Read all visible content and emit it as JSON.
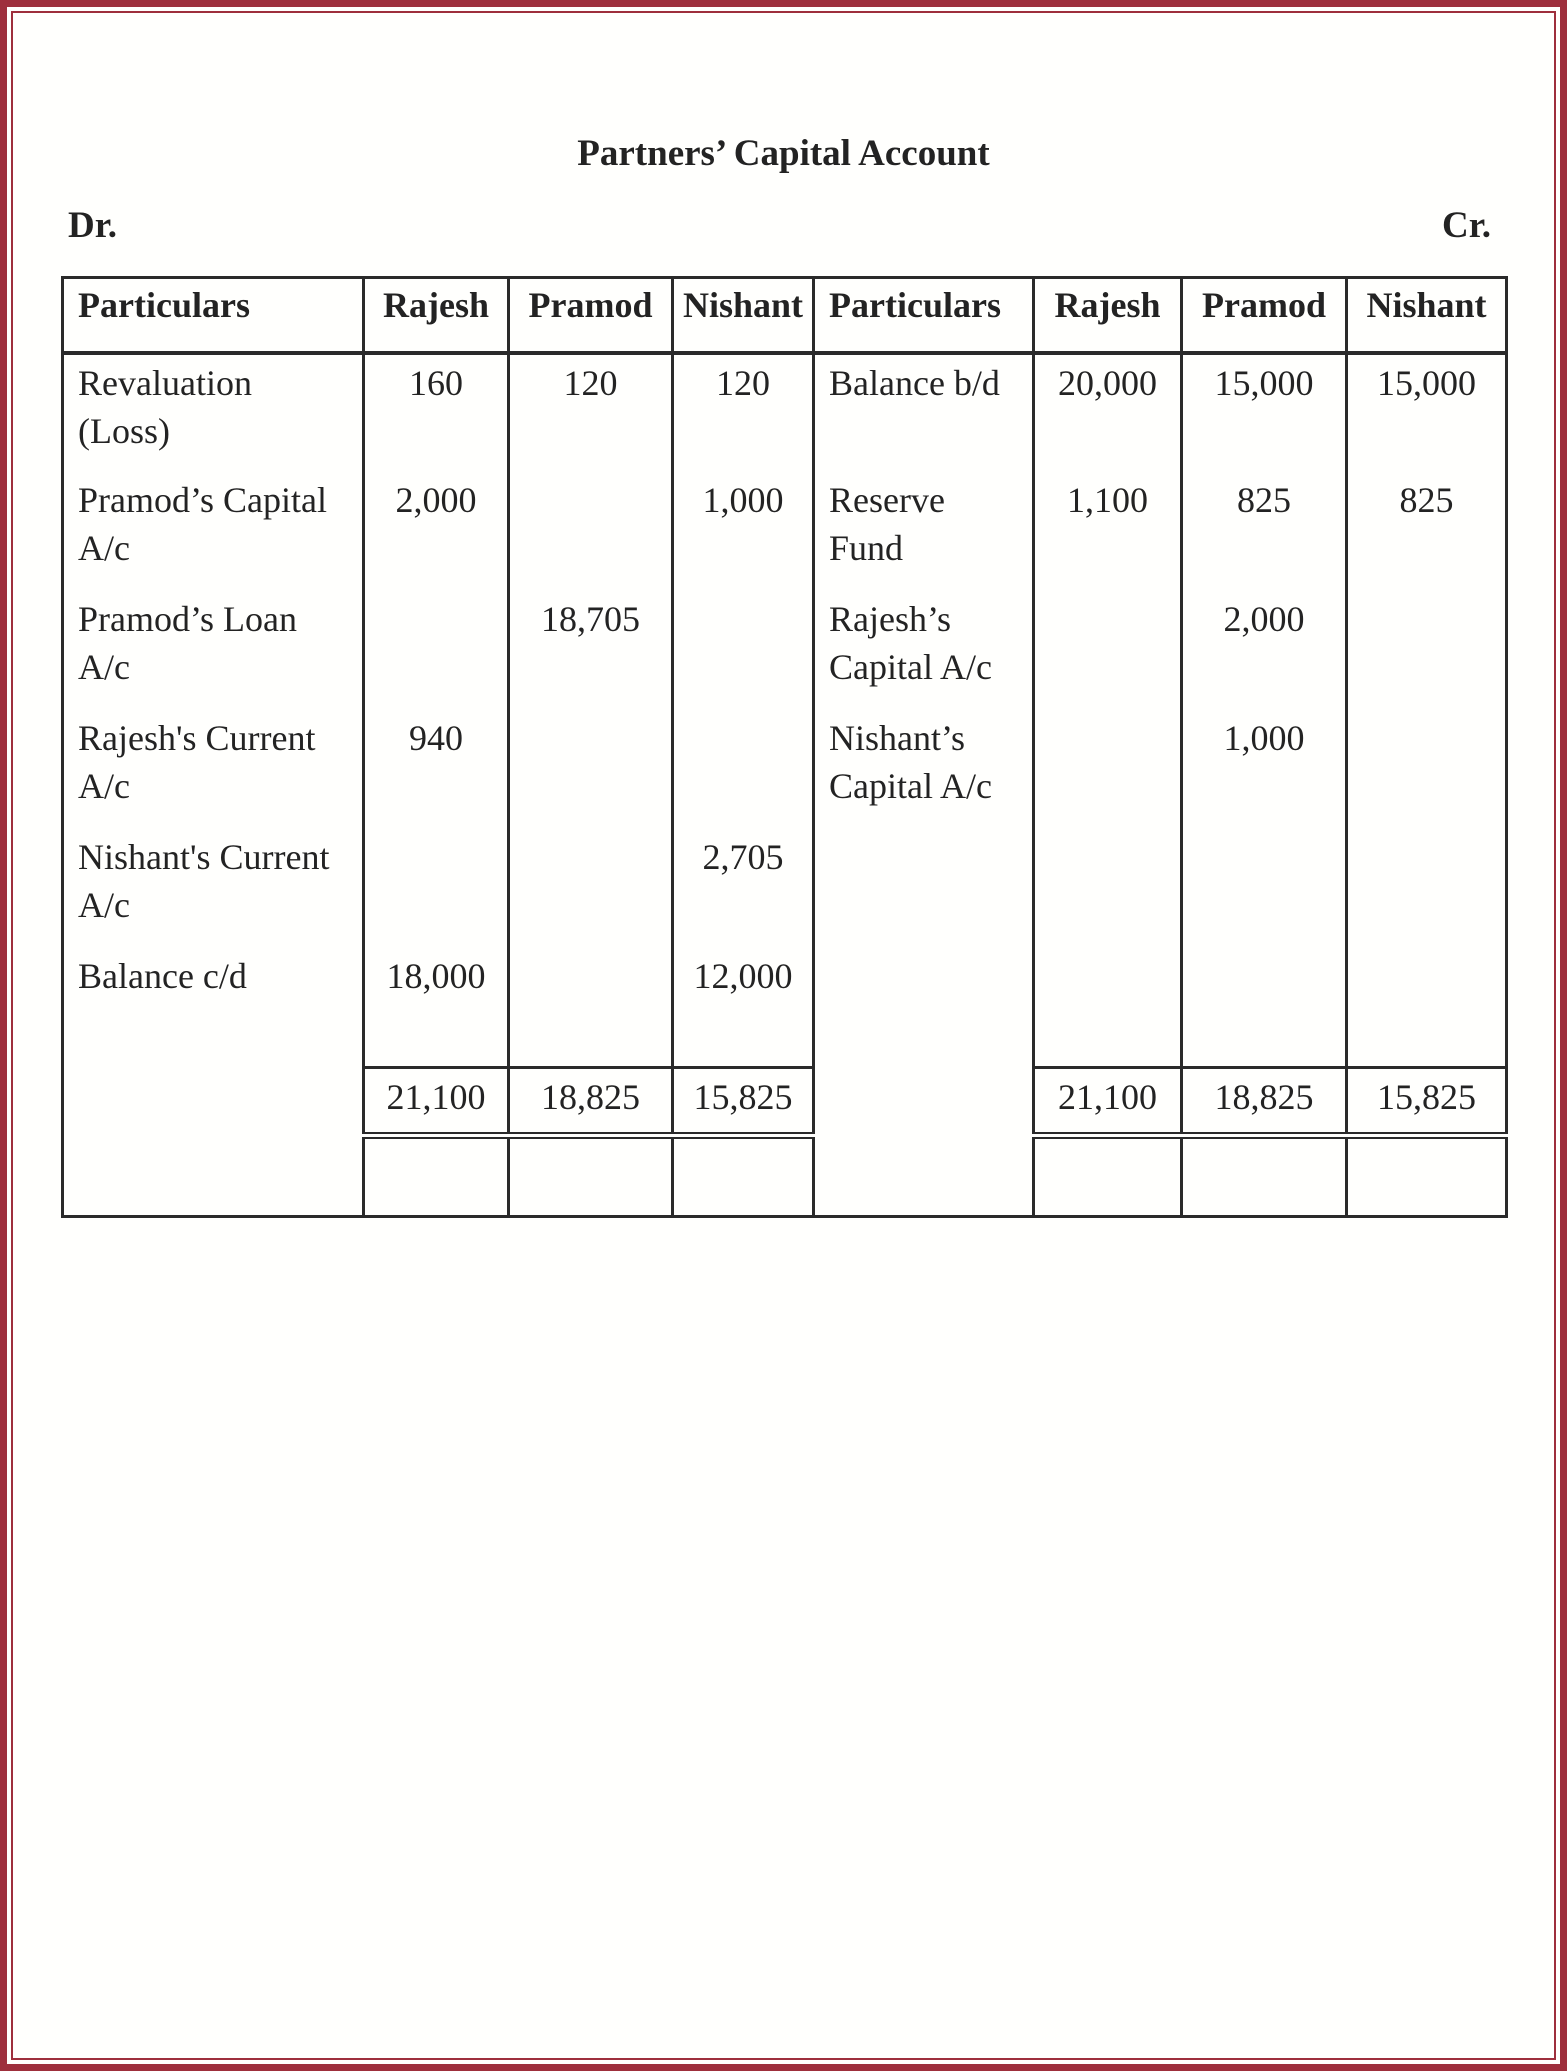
{
  "title": "Partners’ Capital Account",
  "dr_label": "Dr.",
  "cr_label": "Cr.",
  "headers": {
    "debit": [
      "Particulars",
      "Rajesh",
      "Pramod",
      "Nishant"
    ],
    "credit": [
      "Particulars",
      "Rajesh",
      "Pramod",
      "Nishant"
    ]
  },
  "debit_rows": [
    {
      "particulars": "Revaluation\n(Loss)",
      "rajesh": "160",
      "pramod": "120",
      "nishant": "120"
    },
    {
      "particulars": "Pramod’s Capital\nA/c",
      "rajesh": "2,000",
      "pramod": "",
      "nishant": "1,000"
    },
    {
      "particulars": "Pramod’s Loan\nA/c",
      "rajesh": "",
      "pramod": "18,705",
      "nishant": ""
    },
    {
      "particulars": "Rajesh's   Current\nA/c",
      "rajesh": "940",
      "pramod": "",
      "nishant": ""
    },
    {
      "particulars": "Nishant's Current\nA/c",
      "rajesh": "",
      "pramod": "",
      "nishant": "2,705"
    },
    {
      "particulars": "Balance c/d",
      "rajesh": "18,000",
      "pramod": "",
      "nishant": "12,000"
    }
  ],
  "credit_rows": [
    {
      "particulars": "Balance b/d",
      "rajesh": "20,000",
      "pramod": "15,000",
      "nishant": "15,000"
    },
    {
      "particulars": "Reserve\nFund",
      "rajesh": "1,100",
      "pramod": "825",
      "nishant": "825"
    },
    {
      "particulars": "Rajesh’s\nCapital A/c",
      "rajesh": "",
      "pramod": "2,000",
      "nishant": ""
    },
    {
      "particulars": "Nishant’s\nCapital A/c",
      "rajesh": "",
      "pramod": "1,000",
      "nishant": ""
    }
  ],
  "debit_totals": {
    "rajesh": "21,100",
    "pramod": "18,825",
    "nishant": "15,825"
  },
  "credit_totals": {
    "rajesh": "21,100",
    "pramod": "18,825",
    "nishant": "15,825"
  },
  "colors": {
    "frame": "#9e2f3c",
    "text": "#232323"
  }
}
